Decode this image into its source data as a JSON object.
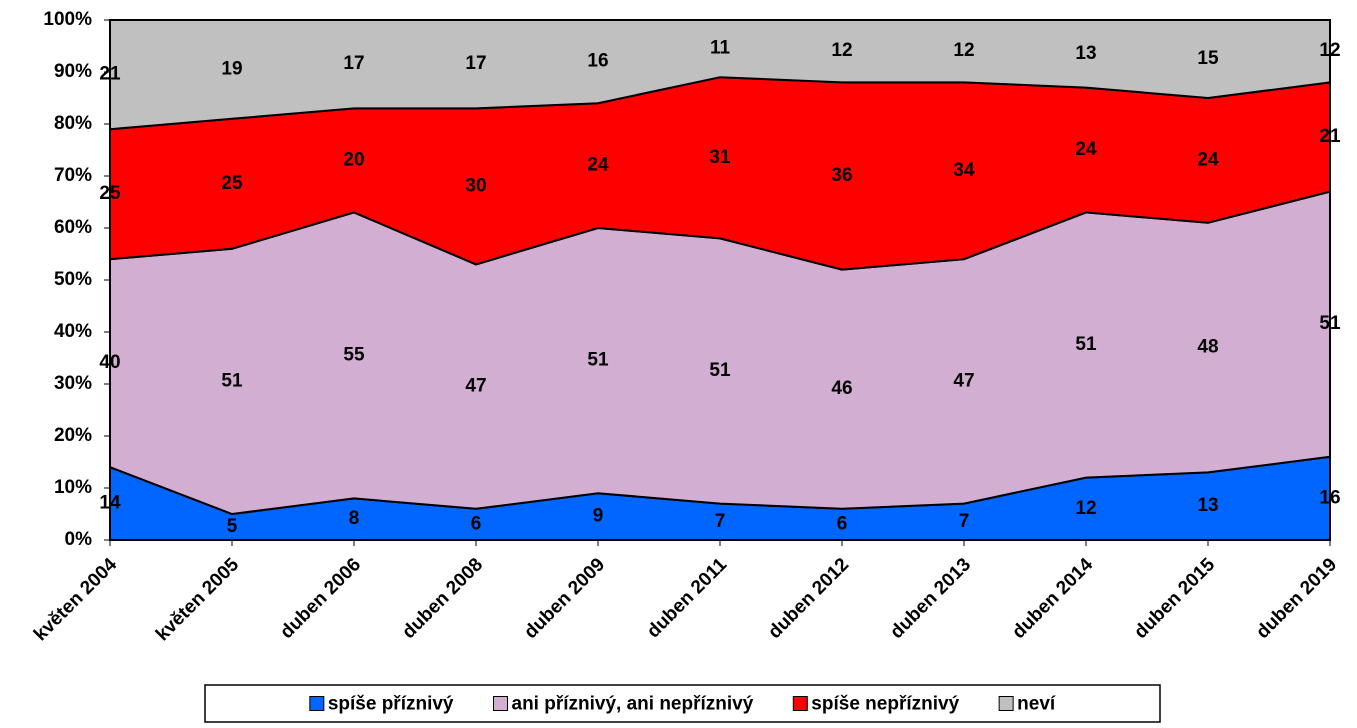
{
  "chart_data": {
    "type": "stacked_area",
    "categories": [
      "květen 2004",
      "květen 2005",
      "duben 2006",
      "duben 2008",
      "duben 2009",
      "duben 2011",
      "duben 2012",
      "duben 2013",
      "duben 2014",
      "duben 2015",
      "duben 2019"
    ],
    "series": [
      {
        "name": "spíše příznivý",
        "color": "#0066ff",
        "values": [
          14,
          5,
          8,
          6,
          9,
          7,
          6,
          7,
          12,
          13,
          16
        ]
      },
      {
        "name": "ani příznivý, ani nepříznivý",
        "color": "#d2aed2",
        "values": [
          40,
          51,
          55,
          47,
          51,
          51,
          46,
          47,
          51,
          48,
          51
        ]
      },
      {
        "name": "spíše nepříznivý",
        "color": "#ff0000",
        "values": [
          25,
          25,
          20,
          30,
          24,
          31,
          36,
          34,
          24,
          24,
          21
        ]
      },
      {
        "name": "neví",
        "color": "#c0c0c0",
        "values": [
          21,
          19,
          17,
          17,
          16,
          11,
          12,
          12,
          13,
          15,
          12
        ]
      }
    ],
    "ylim": [
      0,
      100
    ],
    "yticks": [
      {
        "value": 0,
        "label": "0%"
      },
      {
        "value": 10,
        "label": "10%"
      },
      {
        "value": 20,
        "label": "20%"
      },
      {
        "value": 30,
        "label": "30%"
      },
      {
        "value": 40,
        "label": "40%"
      },
      {
        "value": 50,
        "label": "50%"
      },
      {
        "value": 60,
        "label": "60%"
      },
      {
        "value": 70,
        "label": "70%"
      },
      {
        "value": 80,
        "label": "80%"
      },
      {
        "value": 90,
        "label": "90%"
      },
      {
        "value": 100,
        "label": "100%"
      }
    ],
    "legend": "bottom"
  }
}
